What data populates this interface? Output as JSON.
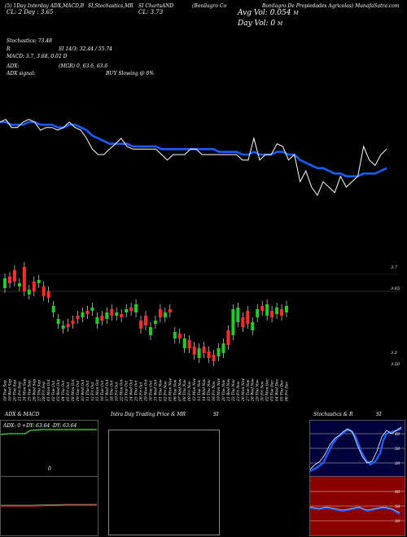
{
  "header": {
    "line1": "(5) 1Day Interday ADX,MACD,B",
    "cl_label": "CL: 2 Day : 3.65",
    "stoch_label": "SI,Stochastics,MR",
    "chart_label": "SI ChartsAND",
    "cl_value": "CL: 3.73",
    "company": "(Bonilagro Co",
    "company2": "Bonilagro De Propiedades Agricolas) ManafaSutra.com",
    "avg_vol": "Avg Vol: 0.054",
    "avg_vol_unit": "M",
    "day_vol": "Day Vol: 0",
    "day_vol_unit": "M"
  },
  "indicators": {
    "stochastics": "Stochastics: 73.48",
    "stoch_r": "R",
    "si": "SI 14/3: 32.44",
    "si_b": "55.74",
    "macd": "MACD: 3.7, 3.68, 0.02  D",
    "adx": "ADX:",
    "adx_vals": "(MGR) 0, 63.6, 63.6",
    "adx_signal": "ADX  signal:",
    "buy": "BUY Slowing @ 0%"
  },
  "price_chart": {
    "type": "line",
    "series": [
      {
        "values": [
          3.72,
          3.73,
          3.7,
          3.7,
          3.72,
          3.73,
          3.72,
          3.69,
          3.7,
          3.7,
          3.69,
          3.7,
          3.72,
          3.7,
          3.69,
          3.66,
          3.62,
          3.6,
          3.6,
          3.62,
          3.64,
          3.66,
          3.63,
          3.62,
          3.62,
          3.62,
          3.62,
          3.62,
          3.6,
          3.58,
          3.6,
          3.6,
          3.6,
          3.62,
          3.62,
          3.6,
          3.6,
          3.6,
          3.6,
          3.6,
          3.6,
          3.6,
          3.58,
          3.58,
          3.66,
          3.58,
          3.6,
          3.6,
          3.64,
          3.63,
          3.58,
          3.6,
          3.5,
          3.54,
          3.48,
          3.45,
          3.5,
          3.48,
          3.46,
          3.52,
          3.48,
          3.5,
          3.52,
          3.63,
          3.58,
          3.56,
          3.6,
          3.62
        ]
      },
      {
        "values": [
          3.72,
          3.72,
          3.71,
          3.71,
          3.71,
          3.72,
          3.72,
          3.71,
          3.71,
          3.71,
          3.7,
          3.7,
          3.71,
          3.71,
          3.7,
          3.69,
          3.67,
          3.66,
          3.65,
          3.64,
          3.64,
          3.64,
          3.64,
          3.63,
          3.63,
          3.63,
          3.63,
          3.63,
          3.62,
          3.62,
          3.62,
          3.62,
          3.62,
          3.62,
          3.62,
          3.62,
          3.62,
          3.62,
          3.61,
          3.61,
          3.61,
          3.61,
          3.6,
          3.6,
          3.61,
          3.6,
          3.6,
          3.6,
          3.61,
          3.61,
          3.6,
          3.6,
          3.58,
          3.57,
          3.56,
          3.55,
          3.55,
          3.54,
          3.53,
          3.53,
          3.52,
          3.52,
          3.52,
          3.53,
          3.53,
          3.53,
          3.54,
          3.55
        ]
      }
    ]
  },
  "candles": {
    "labels": [
      "3.7",
      "3.65",
      "3.5",
      "3.50"
    ],
    "dates": [
      "18 Tue",
      "19 Wed",
      "20 Thu",
      "21 Fri",
      "24 Mon",
      "25 Tue",
      "26 Wed",
      "27 Thu",
      "28 Fri",
      "01 Mon",
      "02 Tue",
      "03 Wed",
      "04 Thu",
      "05 Fri",
      "08 Mon",
      "09 Tue",
      "10 Wed",
      "11 Thu",
      "12 Fri",
      "15 Mon",
      "16 Tue",
      "17 Wed",
      "18 Thu",
      "19 Fri",
      "22 Mon",
      "23 Tue",
      "24 Wed",
      "25 Thu",
      "26 Fri",
      "29 Mon",
      "30 Tue",
      "31 Wed",
      "01 Thu",
      "02 Fri",
      "05 Mon",
      "06 Tue",
      "07 Wed",
      "08 Thu",
      "09 Fri",
      "12 Mon",
      "13 Tue",
      "14 Wed",
      "15 Thu",
      "16 Fri",
      "19 Mon",
      "20 Tue",
      "21 Wed",
      "22 Thu",
      "23 Fri",
      "26 Mon",
      "27 Tue",
      "28 Wed",
      "29 Thu",
      "30 Fri",
      "02 Mon",
      "03 Tue",
      "04 Wed",
      "05 Thu",
      "06 Fri"
    ],
    "months": [
      "Sep",
      "Sep",
      "Sep",
      "Sep",
      "Sep",
      "Sep",
      "Sep",
      "Sep",
      "Sep",
      "Oct",
      "Oct",
      "Oct",
      "Oct",
      "Oct",
      "Oct",
      "Oct",
      "Oct",
      "Oct",
      "Oct",
      "Oct",
      "Oct",
      "Oct",
      "Oct",
      "Oct",
      "Oct",
      "Oct",
      "Oct",
      "Oct",
      "Oct",
      "Oct",
      "Oct",
      "Oct",
      "Nov",
      "Nov",
      "Nov",
      "Nov",
      "Nov",
      "Nov",
      "Nov",
      "Nov",
      "Nov",
      "Nov",
      "Nov",
      "Nov",
      "Nov",
      "Nov",
      "Nov",
      "Nov",
      "Nov",
      "Nov",
      "Nov",
      "Nov",
      "Nov",
      "Nov",
      "Dec",
      "Dec",
      "Dec",
      "Dec",
      "Dec"
    ]
  },
  "panels": {
    "adx_title": "ADX  & MACD",
    "adx_readout": "ADX: 0  +DY: 63.64  -DY: 63.64",
    "adx_mark": "0",
    "intra_title": "Intra Day Trading Price  & MR",
    "si_title": "SI",
    "stoch_title": "Stochastics & R",
    "stoch_si": "SI",
    "stoch_ticks": [
      "80",
      "50",
      "20"
    ],
    "mr_ticks": [
      "80",
      "50",
      "20"
    ],
    "colors": {
      "blue": "#1a5cff",
      "green": "#22cc22",
      "red": "#ff2a2a",
      "darkred": "#8b0000",
      "navy": "#00003a"
    }
  }
}
